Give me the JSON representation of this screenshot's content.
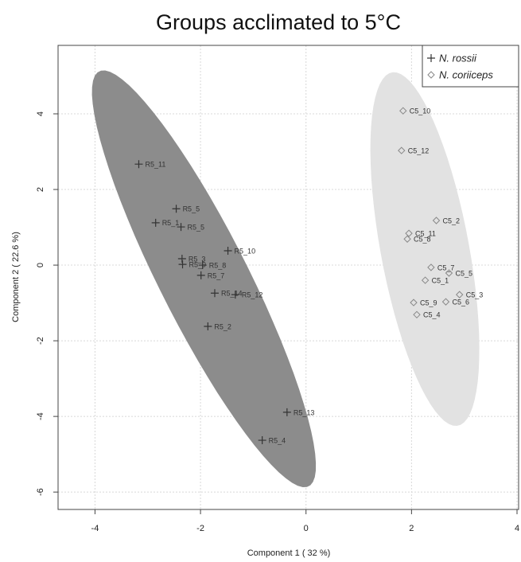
{
  "chart_data": {
    "type": "scatter",
    "title": "Groups acclimated to 5°C",
    "x_label": "Component 1 ( 32 %)",
    "y_label": "Component 2 ( 22.6 %)",
    "xlim": [
      -4.7,
      4.03
    ],
    "ylim": [
      -6.46,
      5.81
    ],
    "xticks": [
      -4,
      -2,
      0,
      2,
      4
    ],
    "yticks": [
      -6,
      -4,
      -2,
      0,
      2,
      4
    ],
    "grid": true,
    "legend": "top-right",
    "series": [
      {
        "name": "N. rossii",
        "color": "#333333",
        "ellipse_color": "#8c8c8c",
        "marker": "plus",
        "labels": [
          "R5_11",
          "R5_5",
          "R5_1",
          "R5_5",
          "R5_3",
          "R5_9",
          "R5_8",
          "R5_10",
          "R5_7",
          "R5_14",
          "R5_12",
          "R5_2",
          "R5_13",
          "R5_4"
        ],
        "x": [
          -3.17,
          -2.46,
          -2.85,
          -2.37,
          -2.35,
          -2.34,
          -1.96,
          -1.48,
          -1.99,
          -1.73,
          -1.34,
          -1.86,
          -0.36,
          -0.83
        ],
        "values": [
          2.67,
          1.49,
          1.12,
          1.01,
          0.17,
          0.02,
          0.0,
          0.38,
          -0.27,
          -0.74,
          -0.78,
          -1.62,
          -3.89,
          -4.63
        ]
      },
      {
        "name": "N. coriiceps",
        "color": "#888888",
        "ellipse_color": "#e2e2e2",
        "marker": "diamond",
        "labels": [
          "C5_10",
          "C5_12",
          "C5_2",
          "C5_11",
          "C5_8",
          "C5_7",
          "C5_5",
          "C5_1",
          "C5_3",
          "C5_9",
          "C5_6",
          "C5_4"
        ],
        "x": [
          1.84,
          1.81,
          2.47,
          1.95,
          1.92,
          2.37,
          2.71,
          2.26,
          2.91,
          2.04,
          2.65,
          2.1
        ],
        "values": [
          4.08,
          3.03,
          1.18,
          0.84,
          0.69,
          -0.06,
          -0.21,
          -0.4,
          -0.78,
          -0.99,
          -0.97,
          -1.31
        ]
      }
    ]
  }
}
